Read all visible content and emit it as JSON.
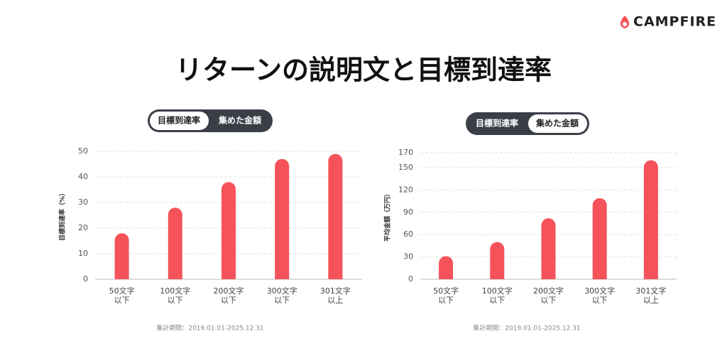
{
  "logo": "CAMPFIRE",
  "title": "リターンの説明文と目標到達率",
  "chart_data": [
    {
      "type": "bar",
      "toggle": [
        "目標到達率",
        "集めた金額"
      ],
      "y_label": "目標到達率（%）",
      "categories": [
        [
          "50文字",
          "以下"
        ],
        [
          "100文字",
          "以下"
        ],
        [
          "200文字",
          "以下"
        ],
        [
          "300文字",
          "以下"
        ],
        [
          "301文字",
          "以上"
        ]
      ],
      "values": [
        18,
        28,
        38,
        47,
        49
      ],
      "color": "#f5525a",
      "ylim": [
        0,
        50
      ],
      "yticks": [
        0,
        10,
        20,
        30,
        40,
        50
      ],
      "grid": true,
      "note": "集計期間：2019.01.01-2025.12.31"
    },
    {
      "type": "bar",
      "toggle": [
        "目標到達率",
        "集めた金額"
      ],
      "y_label": "平均金額（万円）",
      "categories": [
        [
          "50文字",
          "以下"
        ],
        [
          "100文字",
          "以下"
        ],
        [
          "200文字",
          "以下"
        ],
        [
          "300文字",
          "以下"
        ],
        [
          "301文字",
          "以上"
        ]
      ],
      "values": [
        31,
        50,
        82,
        109,
        160
      ],
      "color": "#f5525a",
      "ylim": [
        0,
        170
      ],
      "yticks": [
        0,
        30,
        60,
        90,
        120,
        150,
        170
      ],
      "grid": true,
      "note": "集計期間：2019.01.01-2025.12.31"
    }
  ]
}
